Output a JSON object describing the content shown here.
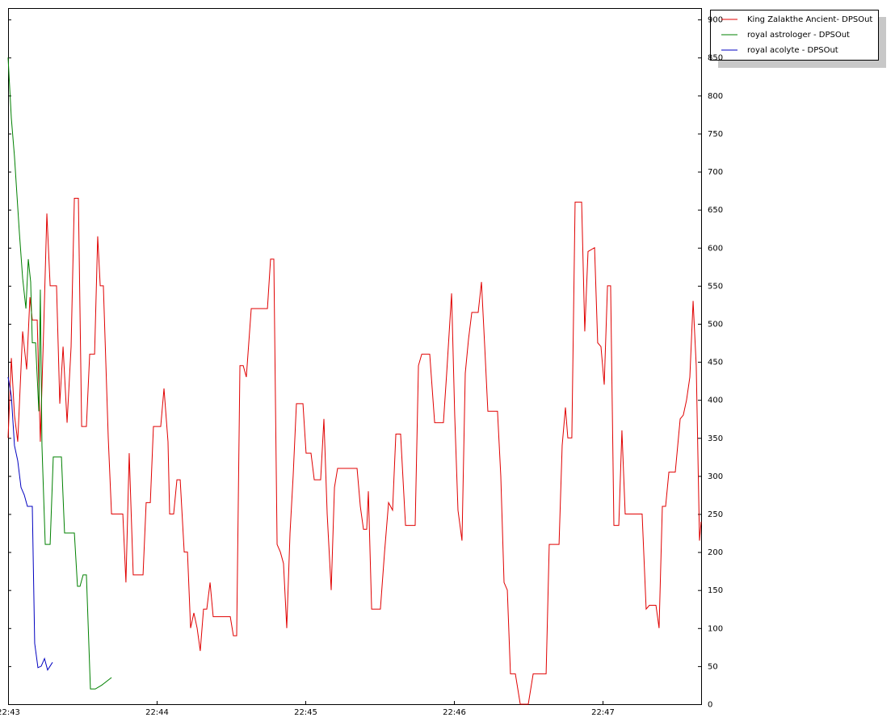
{
  "chart_data": {
    "type": "line",
    "xlim": [
      1363,
      1367.663
    ],
    "ylim": [
      0,
      915
    ],
    "xticks": [
      {
        "value": 1363,
        "label": "22:43"
      },
      {
        "value": 1364,
        "label": "22:44"
      },
      {
        "value": 1365,
        "label": "22:45"
      },
      {
        "value": 1366,
        "label": "22:46"
      },
      {
        "value": 1367,
        "label": "22:47"
      }
    ],
    "yticks": [
      0,
      50,
      100,
      150,
      200,
      250,
      300,
      350,
      400,
      450,
      500,
      550,
      600,
      650,
      700,
      750,
      800,
      850,
      900
    ],
    "grid": false,
    "legend": "top-right",
    "series": [
      {
        "name": "King Zalakthe Ancient- DPSOut",
        "color": "#e00000",
        "x": [
          1363.0,
          1363.022,
          1363.043,
          1363.065,
          1363.098,
          1363.125,
          1363.147,
          1363.163,
          1363.196,
          1363.217,
          1363.239,
          1363.261,
          1363.283,
          1363.326,
          1363.348,
          1363.37,
          1363.397,
          1363.424,
          1363.446,
          1363.473,
          1363.495,
          1363.527,
          1363.549,
          1363.582,
          1363.603,
          1363.62,
          1363.641,
          1363.674,
          1363.696,
          1363.772,
          1363.793,
          1363.815,
          1363.842,
          1363.908,
          1363.929,
          1363.957,
          1363.978,
          1364.027,
          1364.049,
          1364.076,
          1364.087,
          1364.114,
          1364.136,
          1364.158,
          1364.185,
          1364.207,
          1364.228,
          1364.25,
          1364.272,
          1364.293,
          1364.315,
          1364.337,
          1364.359,
          1364.38,
          1364.495,
          1364.516,
          1364.538,
          1364.56,
          1364.582,
          1364.603,
          1364.636,
          1364.745,
          1364.766,
          1364.788,
          1364.81,
          1364.832,
          1364.853,
          1364.875,
          1364.897,
          1364.918,
          1364.94,
          1364.984,
          1365.005,
          1365.038,
          1365.06,
          1365.103,
          1365.125,
          1365.147,
          1365.174,
          1365.196,
          1365.217,
          1365.348,
          1365.37,
          1365.391,
          1365.413,
          1365.424,
          1365.446,
          1365.505,
          1365.533,
          1365.56,
          1365.587,
          1365.609,
          1365.641,
          1365.674,
          1365.739,
          1365.761,
          1365.783,
          1365.837,
          1365.87,
          1365.929,
          1365.951,
          1365.984,
          1366.005,
          1366.027,
          1366.054,
          1366.076,
          1366.098,
          1366.12,
          1366.163,
          1366.185,
          1366.207,
          1366.228,
          1366.293,
          1366.315,
          1366.337,
          1366.359,
          1366.38,
          1366.413,
          1366.446,
          1366.5,
          1366.533,
          1366.62,
          1366.641,
          1366.707,
          1366.728,
          1366.75,
          1366.766,
          1366.793,
          1366.815,
          1366.859,
          1366.88,
          1366.902,
          1366.946,
          1366.967,
          1366.989,
          1367.011,
          1367.033,
          1367.054,
          1367.076,
          1367.109,
          1367.13,
          1367.152,
          1367.266,
          1367.293,
          1367.315,
          1367.359,
          1367.38,
          1367.402,
          1367.424,
          1367.446,
          1367.489,
          1367.522,
          1367.543,
          1367.565,
          1367.587,
          1367.609,
          1367.63,
          1367.652,
          1367.663
        ],
        "values": [
          350,
          455,
          380,
          345,
          490,
          440,
          535,
          505,
          505,
          345,
          490,
          645,
          550,
          550,
          395,
          470,
          370,
          470,
          665,
          665,
          365,
          365,
          460,
          460,
          615,
          550,
          550,
          350,
          250,
          250,
          160,
          330,
          170,
          170,
          265,
          265,
          365,
          365,
          415,
          345,
          250,
          250,
          295,
          295,
          200,
          200,
          100,
          120,
          100,
          70,
          125,
          125,
          160,
          115,
          115,
          90,
          90,
          445,
          445,
          430,
          520,
          520,
          585,
          585,
          210,
          200,
          185,
          100,
          225,
          300,
          395,
          395,
          330,
          330,
          295,
          295,
          375,
          250,
          150,
          285,
          310,
          310,
          260,
          230,
          230,
          280,
          125,
          125,
          200,
          265,
          255,
          355,
          355,
          235,
          235,
          445,
          460,
          460,
          370,
          370,
          435,
          540,
          380,
          255,
          215,
          435,
          480,
          515,
          515,
          555,
          470,
          385,
          385,
          300,
          160,
          150,
          40,
          40,
          0,
          0,
          40,
          40,
          210,
          210,
          340,
          390,
          350,
          350,
          660,
          660,
          490,
          595,
          600,
          475,
          470,
          420,
          550,
          550,
          235,
          235,
          360,
          250,
          250,
          125,
          130,
          130,
          100,
          260,
          260,
          305,
          305,
          375,
          380,
          400,
          430,
          530,
          445,
          215,
          240
        ]
      },
      {
        "name": "royal astrologer - DPSOut",
        "color": "#008000",
        "x": [
          1363.0,
          1363.022,
          1363.043,
          1363.076,
          1363.098,
          1363.12,
          1363.136,
          1363.152,
          1363.163,
          1363.185,
          1363.207,
          1363.217,
          1363.228,
          1363.25,
          1363.283,
          1363.304,
          1363.359,
          1363.38,
          1363.446,
          1363.467,
          1363.484,
          1363.505,
          1363.527,
          1363.554,
          1363.587,
          1363.63,
          1363.696
        ],
        "values": [
          850,
          770,
          720,
          620,
          560,
          520,
          585,
          555,
          475,
          475,
          385,
          545,
          340,
          210,
          210,
          325,
          325,
          225,
          225,
          155,
          155,
          170,
          170,
          20,
          20,
          25,
          35
        ]
      },
      {
        "name": "royal acolyte - DPSOut",
        "color": "#0000c0",
        "x": [
          1363.0,
          1363.022,
          1363.043,
          1363.065,
          1363.087,
          1363.109,
          1363.13,
          1363.163,
          1363.179,
          1363.201,
          1363.223,
          1363.245,
          1363.266,
          1363.299
        ],
        "values": [
          430,
          405,
          340,
          320,
          285,
          275,
          260,
          260,
          80,
          48,
          50,
          60,
          45,
          55
        ]
      }
    ]
  }
}
